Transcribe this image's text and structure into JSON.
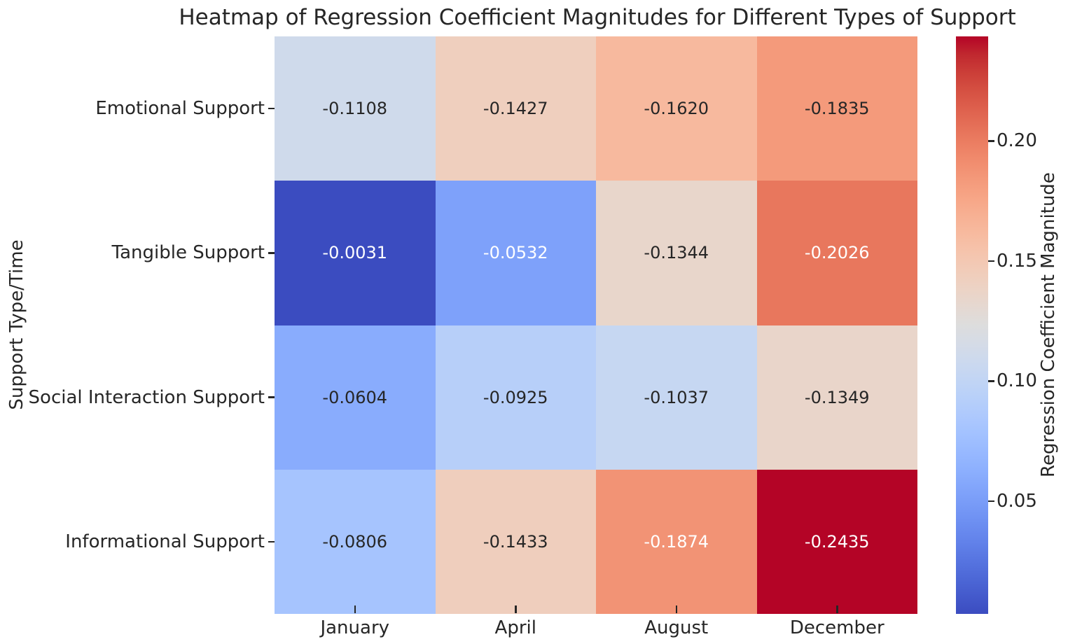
{
  "chart_data": {
    "type": "heatmap",
    "title": "Heatmap of Regression Coefficient Magnitudes for Different Types of Support",
    "xlabel": "",
    "ylabel": "Support Type/Time",
    "rows": [
      "Emotional Support",
      "Tangible Support",
      "Social Interaction Support",
      "Informational Support"
    ],
    "columns": [
      "January",
      "April",
      "August",
      "December"
    ],
    "values": [
      [
        -0.1108,
        -0.1427,
        -0.162,
        -0.1835
      ],
      [
        -0.0031,
        -0.0532,
        -0.1344,
        -0.2026
      ],
      [
        -0.0604,
        -0.0925,
        -0.1037,
        -0.1349
      ],
      [
        -0.0806,
        -0.1433,
        -0.1874,
        -0.2435
      ]
    ],
    "annotation_format": ".4f",
    "white_text_cells": [
      [
        0,
        0,
        0,
        0
      ],
      [
        1,
        1,
        0,
        1
      ],
      [
        0,
        0,
        0,
        0
      ],
      [
        0,
        0,
        1,
        1
      ]
    ],
    "colormap": "coolwarm",
    "color_mapping": {
      "mapped_on": "absolute_value",
      "vmin": 0.0031,
      "vmax": 0.2435
    },
    "colorbar_label": "Regression Coefficient Magnitude",
    "colorbar_ticks": [
      0.05,
      0.1,
      0.15,
      0.2
    ],
    "colorbar_tick_format": ".2f",
    "legend_position": "right",
    "grid": false
  },
  "colors": {
    "dark_text": "#262626",
    "white_text": "#ffffff",
    "background": "#ffffff"
  }
}
